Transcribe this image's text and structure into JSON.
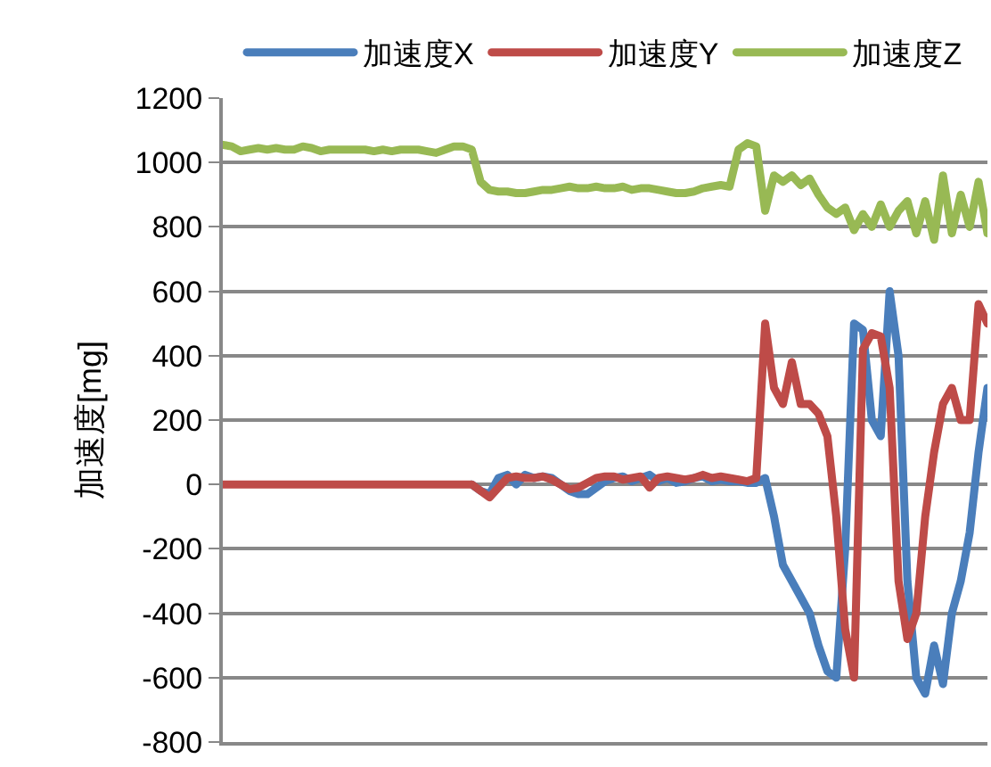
{
  "chart_data": {
    "type": "line",
    "ylabel": "加速度[mg]",
    "ylim": [
      -800,
      1200
    ],
    "yticks": [
      -800,
      -600,
      -400,
      -200,
      0,
      200,
      400,
      600,
      800,
      1000,
      1200
    ],
    "grid": "y",
    "legend": "top",
    "tick_labels": "y",
    "marker": "none",
    "line_style": "solid",
    "categories": [
      null,
      null,
      null,
      null,
      null,
      null,
      null,
      null,
      null,
      null,
      null,
      null,
      null,
      null,
      null,
      null,
      null,
      null,
      null,
      null,
      null,
      null,
      null,
      null,
      null,
      null,
      null,
      null,
      null,
      null,
      null,
      null,
      null,
      null,
      null,
      null,
      null,
      null,
      null,
      null,
      null,
      null,
      null,
      null,
      null,
      null,
      null,
      null,
      null,
      null,
      null,
      null,
      null,
      null,
      null,
      null,
      null,
      null,
      null,
      null,
      null,
      null,
      null,
      null,
      null,
      null,
      null,
      null,
      null,
      null,
      null,
      null,
      null,
      null,
      null,
      null,
      null,
      null,
      null,
      null,
      null,
      null,
      null,
      null,
      null,
      null,
      null
    ],
    "series": [
      {
        "name": "加速度X",
        "color": "#4a7ebb",
        "values": [
          null,
          null,
          null,
          null,
          null,
          null,
          null,
          null,
          null,
          null,
          null,
          null,
          null,
          null,
          null,
          null,
          null,
          null,
          null,
          null,
          null,
          null,
          null,
          null,
          null,
          null,
          null,
          null,
          0,
          -20,
          -30,
          20,
          30,
          0,
          30,
          20,
          25,
          20,
          0,
          -20,
          -30,
          -30,
          -10,
          10,
          20,
          25,
          10,
          20,
          30,
          10,
          20,
          5,
          10,
          20,
          25,
          10,
          15,
          10,
          10,
          5,
          5,
          20,
          -100,
          -250,
          -300,
          -350,
          -400,
          -500,
          -580,
          -600,
          -200,
          500,
          480,
          200,
          150,
          600,
          400,
          -300,
          -600,
          -650,
          -500,
          -620,
          -400,
          -300,
          -150,
          100,
          300
        ]
      },
      {
        "name": "加速度Y",
        "color": "#be4b48",
        "values": [
          0,
          0,
          0,
          0,
          0,
          0,
          0,
          0,
          0,
          0,
          0,
          0,
          0,
          0,
          0,
          0,
          0,
          0,
          0,
          0,
          0,
          0,
          0,
          0,
          0,
          0,
          0,
          0,
          0,
          -20,
          -40,
          -10,
          20,
          25,
          20,
          20,
          25,
          15,
          0,
          -15,
          -10,
          5,
          20,
          25,
          25,
          15,
          20,
          25,
          -10,
          20,
          25,
          20,
          15,
          20,
          30,
          20,
          25,
          20,
          15,
          10,
          20,
          500,
          300,
          250,
          380,
          250,
          250,
          220,
          150,
          -100,
          -450,
          -600,
          420,
          470,
          460,
          300,
          -300,
          -480,
          -400,
          -100,
          100,
          250,
          300,
          200,
          200,
          560,
          500
        ]
      },
      {
        "name": "加速度Z",
        "color": "#98b954",
        "values": [
          1055,
          1050,
          1035,
          1040,
          1045,
          1040,
          1045,
          1040,
          1040,
          1050,
          1045,
          1035,
          1040,
          1040,
          1040,
          1040,
          1040,
          1035,
          1040,
          1035,
          1040,
          1040,
          1040,
          1035,
          1030,
          1040,
          1050,
          1050,
          1040,
          940,
          915,
          910,
          910,
          905,
          905,
          910,
          915,
          915,
          920,
          925,
          920,
          920,
          925,
          920,
          920,
          925,
          915,
          920,
          920,
          915,
          910,
          905,
          905,
          910,
          920,
          925,
          930,
          925,
          1040,
          1060,
          1050,
          850,
          960,
          940,
          960,
          930,
          950,
          900,
          860,
          840,
          860,
          790,
          840,
          800,
          870,
          800,
          850,
          880,
          780,
          880,
          760,
          960,
          780,
          900,
          800,
          940,
          780
        ]
      }
    ]
  }
}
